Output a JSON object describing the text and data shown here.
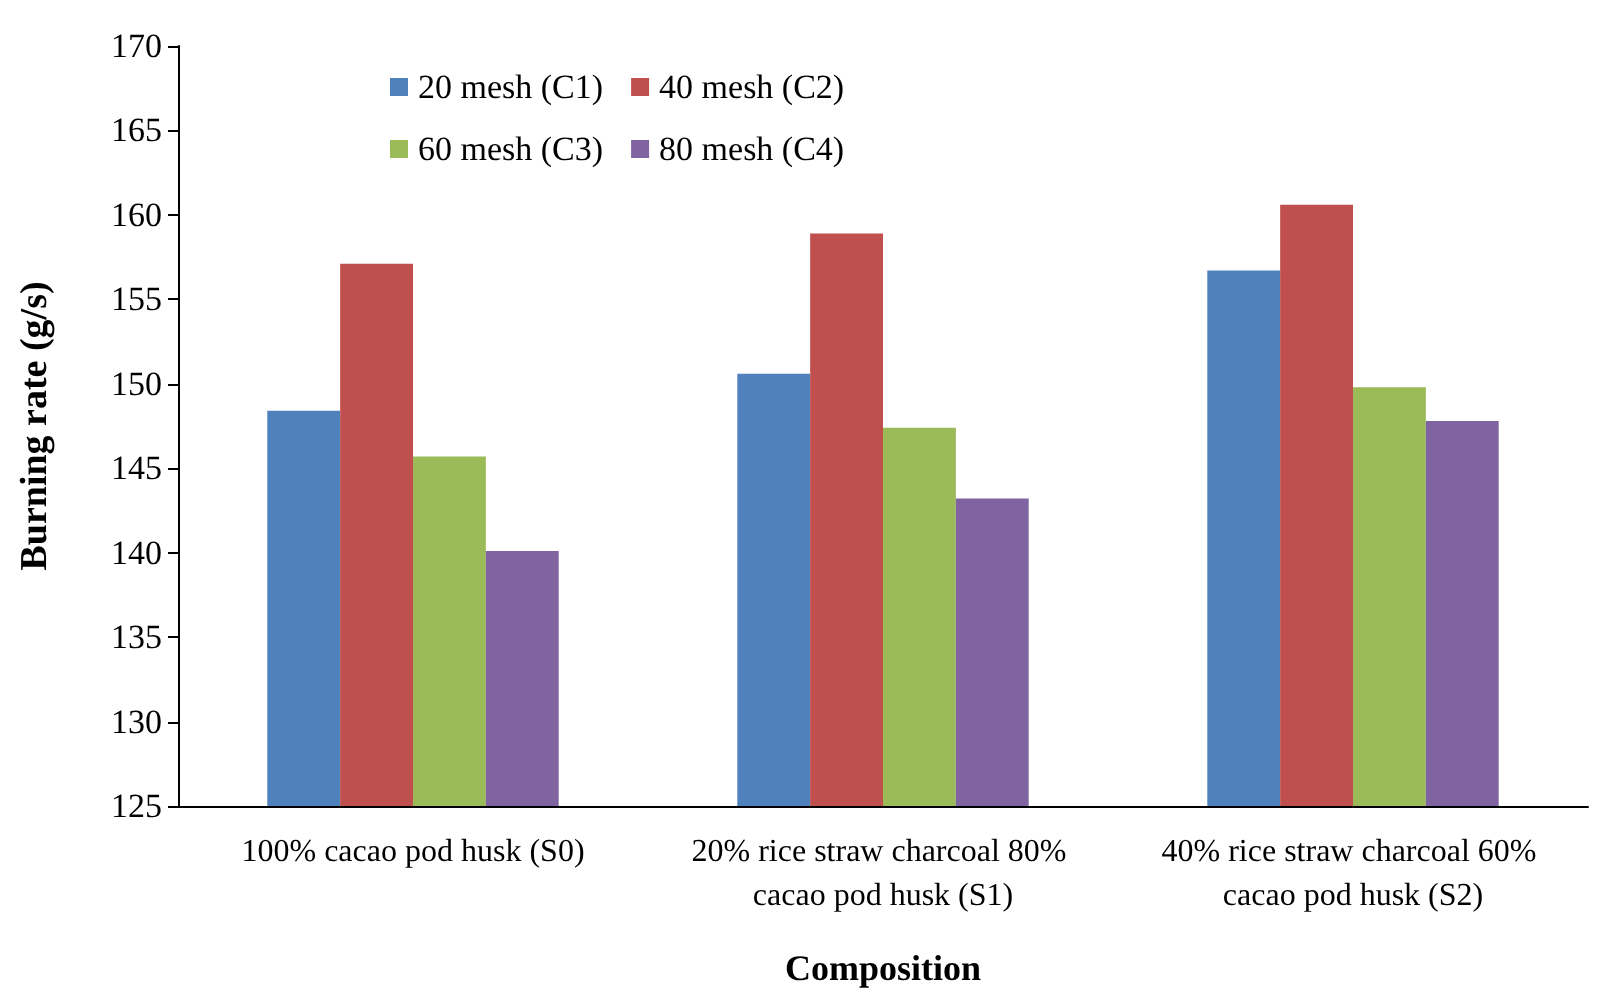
{
  "chart_data": {
    "type": "bar",
    "xlabel": "Composition",
    "ylabel": "Burning rate (g/s)",
    "categories": [
      "100% cacao pod husk (S0)",
      "20% rice straw charcoal 80% cacao pod husk (S1)",
      "40% rice straw charcoal 60% cacao pod husk (S2)"
    ],
    "series": [
      {
        "name": "20 mesh (C1)",
        "color": "#4f81bd",
        "values": [
          148.4,
          150.6,
          156.7
        ]
      },
      {
        "name": "40 mesh (C2)",
        "color": "#c0504d",
        "values": [
          157.1,
          158.9,
          160.6
        ]
      },
      {
        "name": "60 mesh (C3)",
        "color": "#9bbb59",
        "values": [
          145.7,
          147.4,
          149.8
        ]
      },
      {
        "name": "80 mesh (C4)",
        "color": "#8064a2",
        "values": [
          140.1,
          143.2,
          147.8
        ]
      }
    ],
    "ylim": [
      125,
      170
    ],
    "yticks": [
      125,
      130,
      135,
      140,
      145,
      150,
      155,
      160,
      165,
      170
    ],
    "grid": false,
    "legend": "top left"
  }
}
